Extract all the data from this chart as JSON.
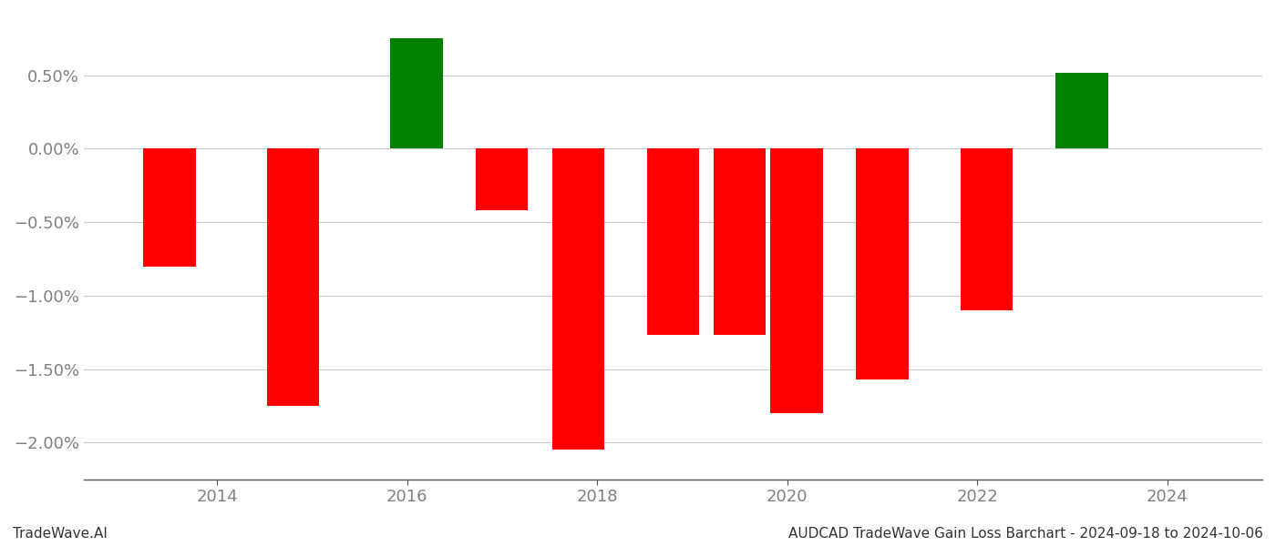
{
  "years": [
    2013.5,
    2014.8,
    2016.1,
    2017.0,
    2017.8,
    2018.8,
    2019.5,
    2020.1,
    2021.0,
    2022.1,
    2023.1
  ],
  "values": [
    -0.8,
    -1.75,
    0.75,
    -0.42,
    -2.05,
    -1.27,
    -1.27,
    -1.8,
    -1.57,
    -1.1,
    0.52
  ],
  "colors": [
    "#ff0000",
    "#ff0000",
    "#008000",
    "#ff0000",
    "#ff0000",
    "#ff0000",
    "#ff0000",
    "#ff0000",
    "#ff0000",
    "#ff0000",
    "#008000"
  ],
  "ylim": [
    -2.25,
    0.92
  ],
  "footer_left": "TradeWave.AI",
  "footer_right": "AUDCAD TradeWave Gain Loss Barchart - 2024-09-18 to 2024-10-06",
  "bar_width": 0.55,
  "bg_color": "#ffffff",
  "grid_color": "#cccccc",
  "tick_color": "#808080",
  "ytick_values": [
    0.5,
    0.0,
    -0.5,
    -1.0,
    -1.5,
    -2.0
  ],
  "ytick_labels": [
    "0.50%",
    "0.00%",
    "−0.50%",
    "−1.00%",
    "−1.50%",
    "−2.00%"
  ],
  "xtick_labels": [
    "2014",
    "2016",
    "2018",
    "2020",
    "2022",
    "2024"
  ],
  "xtick_values": [
    2014,
    2016,
    2018,
    2020,
    2022,
    2024
  ],
  "xlim": [
    2012.6,
    2025.0
  ]
}
